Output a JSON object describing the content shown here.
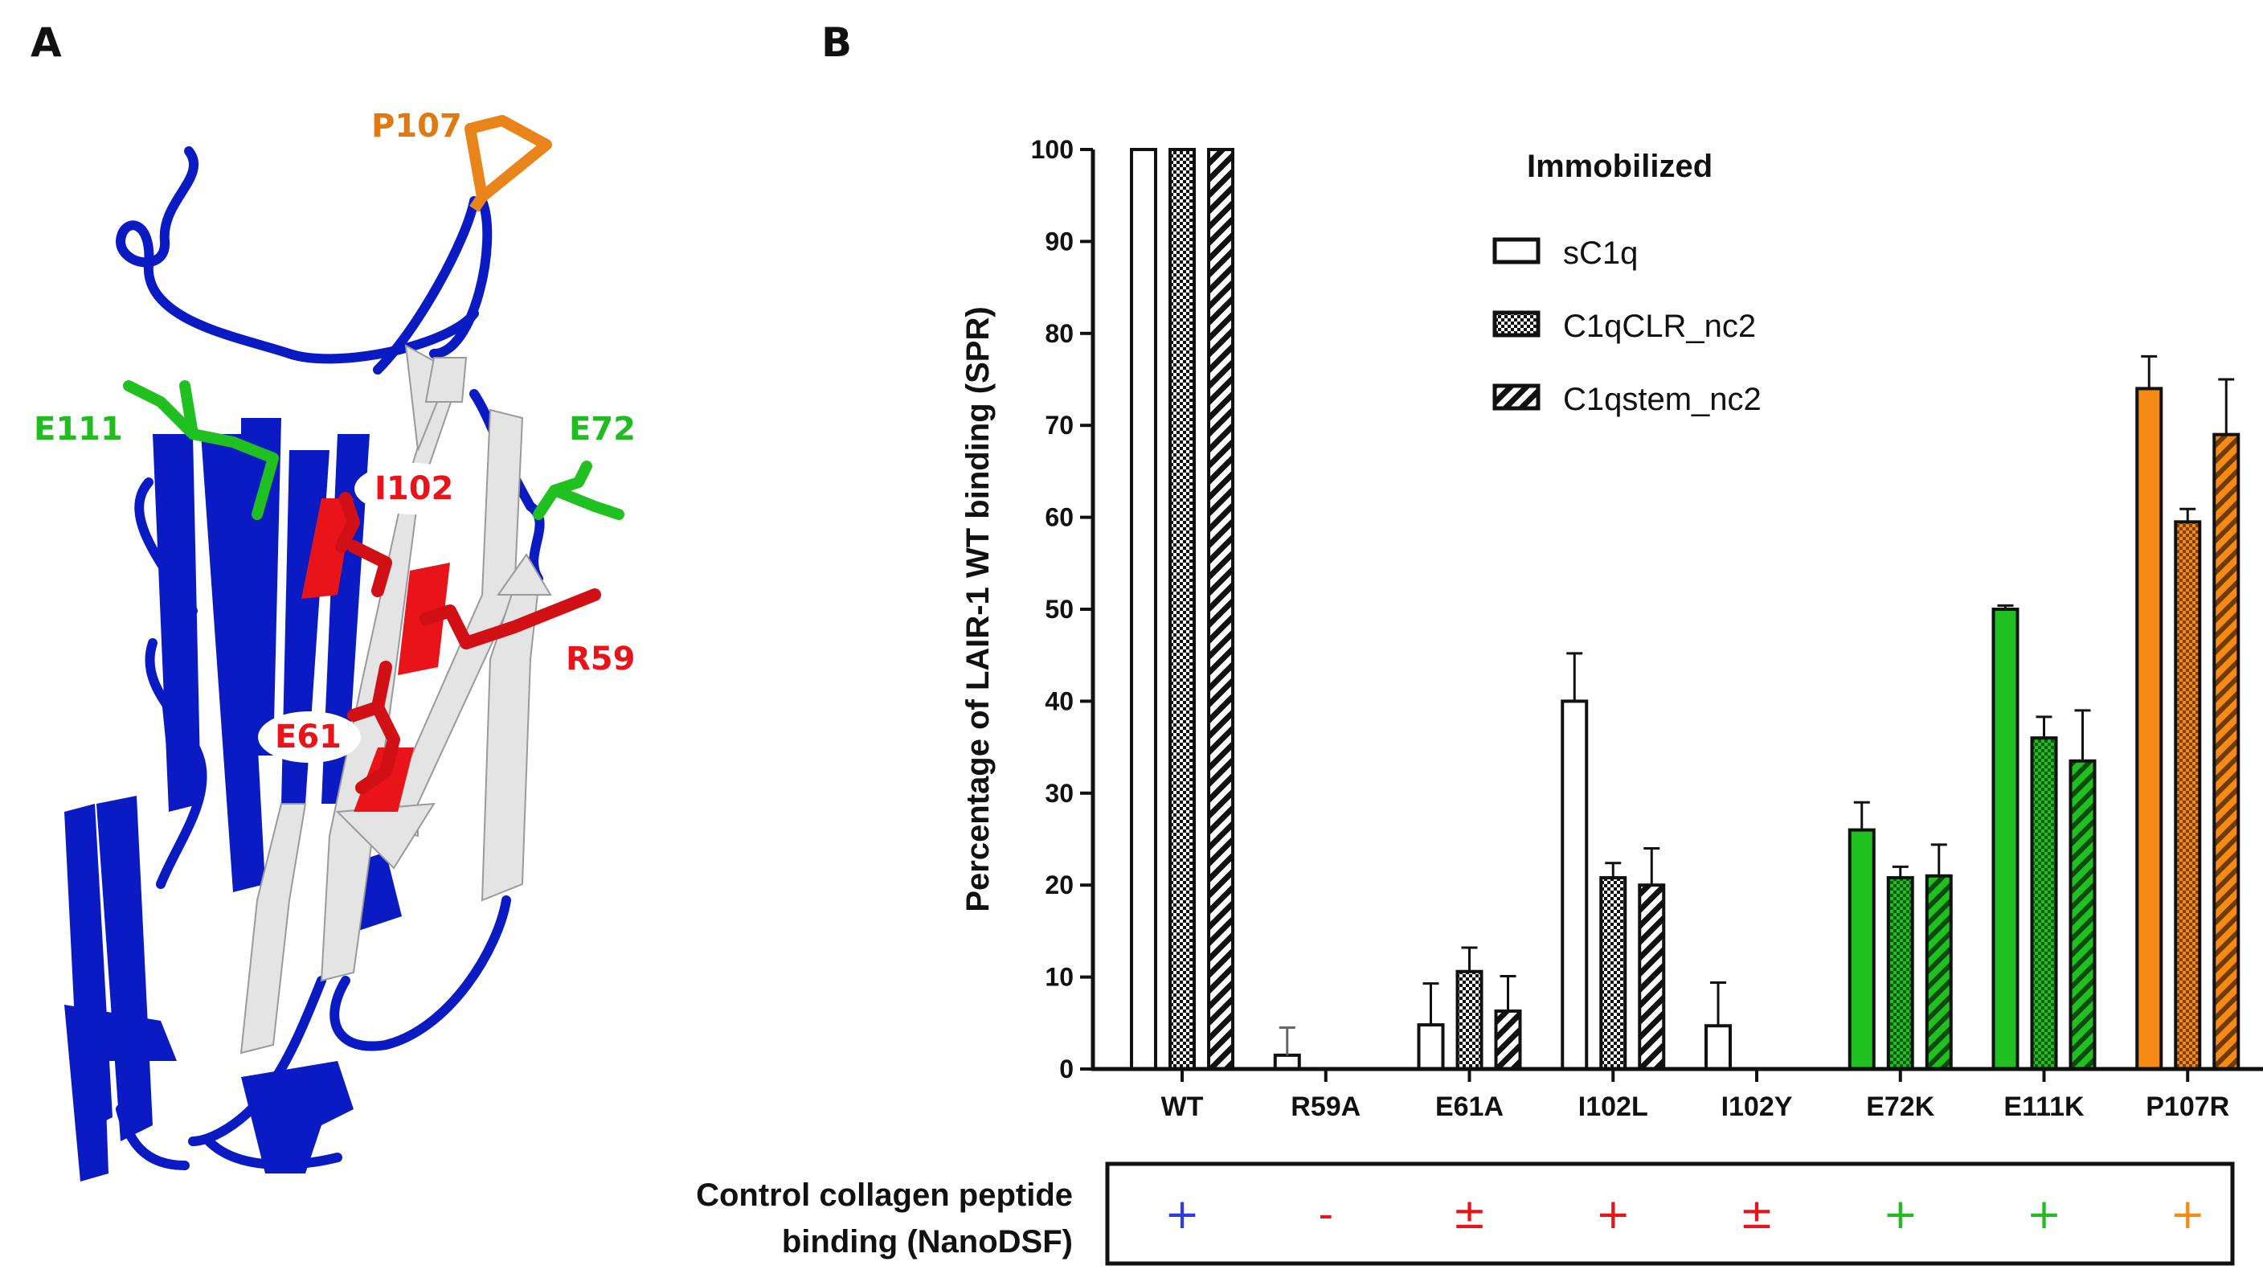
{
  "panels": {
    "a": "A",
    "b": "B"
  },
  "structure_labels": [
    {
      "id": "P107",
      "text": "P107",
      "color": "#E07A10"
    },
    {
      "id": "E111",
      "text": "E111",
      "color": "#22BB22"
    },
    {
      "id": "E72",
      "text": "E72",
      "color": "#22BB22"
    },
    {
      "id": "I102",
      "text": "I102",
      "color": "#E8141A"
    },
    {
      "id": "R59",
      "text": "R59",
      "color": "#E8141A"
    },
    {
      "id": "E61",
      "text": "E61",
      "color": "#E8141A"
    }
  ],
  "colors": {
    "blue": "#0B1BC4",
    "white_strand": "#E4E4E4",
    "red": "#E8141A",
    "green": "#1FC01F",
    "orange": "#F58A14",
    "black": "#111111"
  },
  "chart_data": {
    "type": "bar",
    "ylabel": "Percentage of LAIR-1 WT binding (SPR)",
    "ylim": [
      0,
      100
    ],
    "yticks": [
      "0",
      "10",
      "20",
      "30",
      "40",
      "50",
      "60",
      "70",
      "80",
      "90",
      "100"
    ],
    "categories": [
      "WT",
      "R59A",
      "E61A",
      "I102L",
      "I102Y",
      "E72K",
      "E111K",
      "P107R"
    ],
    "category_colors": [
      "#FFFFFF",
      "#FFFFFF",
      "#FFFFFF",
      "#FFFFFF",
      "#FFFFFF",
      "#1FC01F",
      "#1FC01F",
      "#F58A14"
    ],
    "legend_title": "Immobilized",
    "series": [
      {
        "name": "sC1q",
        "pattern": "solid",
        "values": [
          100,
          1.5,
          4.8,
          40,
          4.7,
          26,
          50,
          74
        ],
        "errors": [
          0,
          3,
          4.5,
          5.2,
          4.7,
          3,
          0.4,
          3.5
        ]
      },
      {
        "name": "C1qCLR_nc2",
        "pattern": "checker",
        "values": [
          100,
          null,
          10.6,
          20.8,
          null,
          20.8,
          36,
          59.5
        ],
        "errors": [
          0,
          null,
          2.6,
          1.6,
          null,
          1.2,
          2.3,
          1.4
        ]
      },
      {
        "name": "C1qstem_nc2",
        "pattern": "hatch",
        "values": [
          100,
          null,
          6.3,
          20,
          null,
          21,
          33.5,
          69
        ],
        "errors": [
          0,
          null,
          3.8,
          4,
          null,
          3.4,
          5.5,
          6
        ]
      }
    ]
  },
  "control": {
    "label_line1": "Control collagen peptide",
    "label_line2": "binding (NanoDSF)",
    "symbols": [
      {
        "text": "+",
        "color": "#2F3DE0"
      },
      {
        "text": "-",
        "color": "#E8141A"
      },
      {
        "text": "±",
        "color": "#E8141A"
      },
      {
        "text": "+",
        "color": "#E8141A"
      },
      {
        "text": "±",
        "color": "#E8141A"
      },
      {
        "text": "+",
        "color": "#22BB22"
      },
      {
        "text": "+",
        "color": "#22BB22"
      },
      {
        "text": "+",
        "color": "#F58A14"
      }
    ]
  }
}
